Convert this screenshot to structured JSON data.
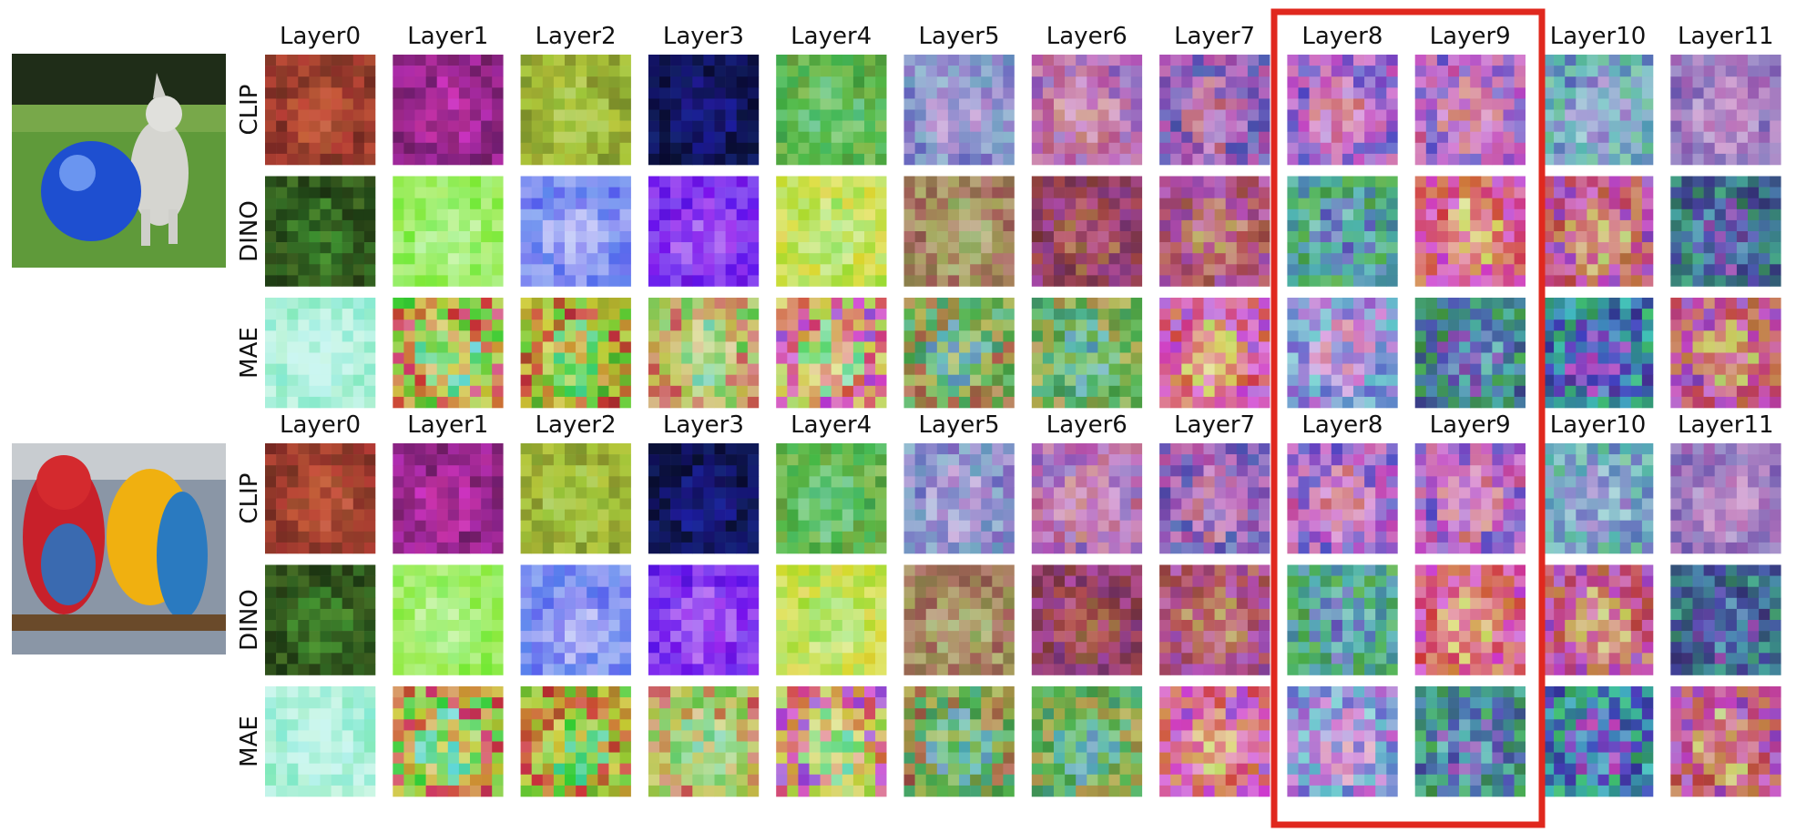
{
  "groups": [
    {
      "column_labels": [
        "Layer0",
        "Layer1",
        "Layer2",
        "Layer3",
        "Layer4",
        "Layer5",
        "Layer6",
        "Layer7",
        "Layer8",
        "Layer9",
        "Layer10",
        "Layer11"
      ],
      "row_labels": [
        "CLIP",
        "DINO",
        "MAE"
      ]
    },
    {
      "column_labels": [
        "Layer0",
        "Layer1",
        "Layer2",
        "Layer3",
        "Layer4",
        "Layer5",
        "Layer6",
        "Layer7",
        "Layer8",
        "Layer9",
        "Layer10",
        "Layer11"
      ],
      "row_labels": [
        "CLIP",
        "DINO",
        "MAE"
      ]
    }
  ]
}
